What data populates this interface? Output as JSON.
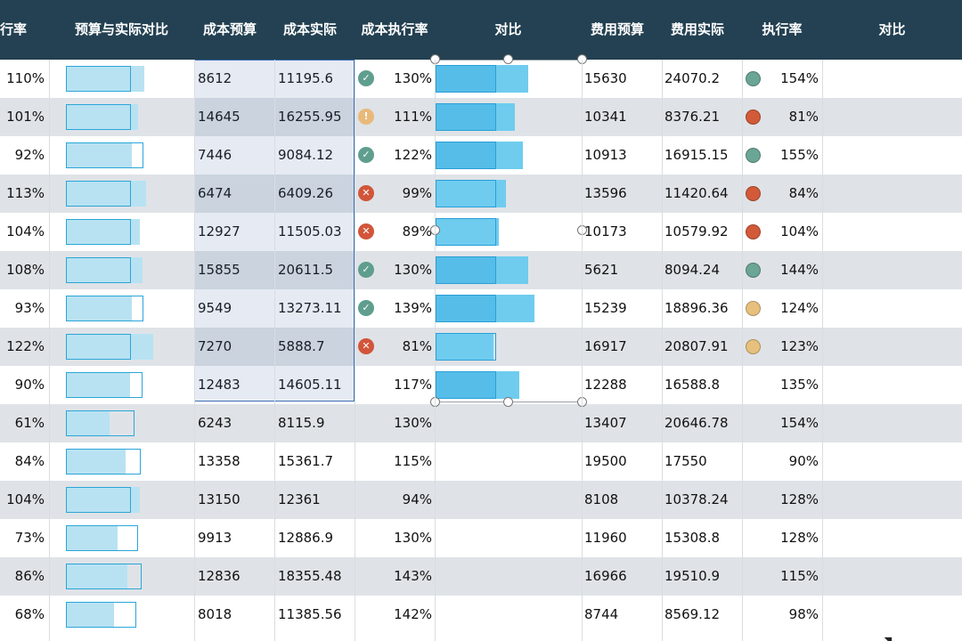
{
  "colors": {
    "header_bg": "#234152",
    "row_alt": "#dfe3e7",
    "bar_light": "#b8e2f2",
    "bar_border": "#2aa6d8",
    "bar_blue": "#56bde8",
    "selection_border": "#3c6fb6",
    "icon_check": "#5f9e8e",
    "icon_warn": "#e9b97a",
    "icon_cross": "#d2553a",
    "dot_green": "#6ba595",
    "dot_red": "#d25a38",
    "dot_amber": "#e6c07c"
  },
  "headers": [
    "行率",
    "预算与实际对比",
    "成本预算",
    "成本实际",
    "成本执行率",
    "对比",
    "费用预算",
    "费用实际",
    "执行率",
    "对比"
  ],
  "rows": [
    {
      "rate1": "110%",
      "bar1": 1.1,
      "cost_budget": "8612",
      "cost_actual": "11195.6",
      "status_icon": "check-icon",
      "cost_rate": "130%",
      "bar2": 1.3,
      "fee_budget": "15630",
      "fee_actual": "24070.2",
      "fee_dot": "green",
      "fee_rate": "154%"
    },
    {
      "rate1": "101%",
      "bar1": 1.01,
      "cost_budget": "14645",
      "cost_actual": "16255.95",
      "status_icon": "warning-icon",
      "cost_rate": "111%",
      "bar2": 1.11,
      "fee_budget": "10341",
      "fee_actual": "8376.21",
      "fee_dot": "red",
      "fee_rate": "81%"
    },
    {
      "rate1": "92%",
      "bar1": 0.92,
      "cost_budget": "7446",
      "cost_actual": "9084.12",
      "status_icon": "check-icon",
      "cost_rate": "122%",
      "bar2": 1.22,
      "fee_budget": "10913",
      "fee_actual": "16915.15",
      "fee_dot": "green",
      "fee_rate": "155%"
    },
    {
      "rate1": "113%",
      "bar1": 1.13,
      "cost_budget": "6474",
      "cost_actual": "6409.26",
      "status_icon": "cross-icon",
      "cost_rate": "99%",
      "bar2": 0.99,
      "fee_budget": "13596",
      "fee_actual": "11420.64",
      "fee_dot": "red",
      "fee_rate": "84%"
    },
    {
      "rate1": "104%",
      "bar1": 1.04,
      "cost_budget": "12927",
      "cost_actual": "11505.03",
      "status_icon": "cross-icon",
      "cost_rate": "89%",
      "bar2": 0.89,
      "fee_budget": "10173",
      "fee_actual": "10579.92",
      "fee_dot": "red",
      "fee_rate": "104%"
    },
    {
      "rate1": "108%",
      "bar1": 1.08,
      "cost_budget": "15855",
      "cost_actual": "20611.5",
      "status_icon": "check-icon",
      "cost_rate": "130%",
      "bar2": 1.3,
      "fee_budget": "5621",
      "fee_actual": "8094.24",
      "fee_dot": "green",
      "fee_rate": "144%"
    },
    {
      "rate1": "93%",
      "bar1": 0.93,
      "cost_budget": "9549",
      "cost_actual": "13273.11",
      "status_icon": "check-icon",
      "cost_rate": "139%",
      "bar2": 1.39,
      "fee_budget": "15239",
      "fee_actual": "18896.36",
      "fee_dot": "amber",
      "fee_rate": "124%"
    },
    {
      "rate1": "122%",
      "bar1": 1.22,
      "cost_budget": "7270",
      "cost_actual": "5888.7",
      "status_icon": "cross-icon",
      "cost_rate": "81%",
      "bar2": 0.81,
      "fee_budget": "16917",
      "fee_actual": "20807.91",
      "fee_dot": "amber",
      "fee_rate": "123%"
    },
    {
      "rate1": "90%",
      "bar1": 0.9,
      "cost_budget": "12483",
      "cost_actual": "14605.11",
      "status_icon": "",
      "cost_rate": "117%",
      "bar2": 1.17,
      "fee_budget": "12288",
      "fee_actual": "16588.8",
      "fee_dot": "",
      "fee_rate": "135%"
    },
    {
      "rate1": "61%",
      "bar1": 0.61,
      "cost_budget": "6243",
      "cost_actual": "8115.9",
      "status_icon": "",
      "cost_rate": "130%",
      "bar2": null,
      "fee_budget": "13407",
      "fee_actual": "20646.78",
      "fee_dot": "",
      "fee_rate": "154%"
    },
    {
      "rate1": "84%",
      "bar1": 0.84,
      "cost_budget": "13358",
      "cost_actual": "15361.7",
      "status_icon": "",
      "cost_rate": "115%",
      "bar2": null,
      "fee_budget": "19500",
      "fee_actual": "17550",
      "fee_dot": "",
      "fee_rate": "90%"
    },
    {
      "rate1": "104%",
      "bar1": 1.04,
      "cost_budget": "13150",
      "cost_actual": "12361",
      "status_icon": "",
      "cost_rate": "94%",
      "bar2": null,
      "fee_budget": "8108",
      "fee_actual": "10378.24",
      "fee_dot": "",
      "fee_rate": "128%"
    },
    {
      "rate1": "73%",
      "bar1": 0.73,
      "cost_budget": "9913",
      "cost_actual": "12886.9",
      "status_icon": "",
      "cost_rate": "130%",
      "bar2": null,
      "fee_budget": "11960",
      "fee_actual": "15308.8",
      "fee_dot": "",
      "fee_rate": "128%"
    },
    {
      "rate1": "86%",
      "bar1": 0.86,
      "cost_budget": "12836",
      "cost_actual": "18355.48",
      "status_icon": "",
      "cost_rate": "143%",
      "bar2": null,
      "fee_budget": "16966",
      "fee_actual": "19510.9",
      "fee_dot": "",
      "fee_rate": "115%"
    },
    {
      "rate1": "68%",
      "bar1": 0.68,
      "cost_budget": "8018",
      "cost_actual": "11385.56",
      "status_icon": "",
      "cost_rate": "142%",
      "bar2": null,
      "fee_budget": "8744",
      "fee_actual": "8569.12",
      "fee_dot": "",
      "fee_rate": "98%"
    }
  ]
}
